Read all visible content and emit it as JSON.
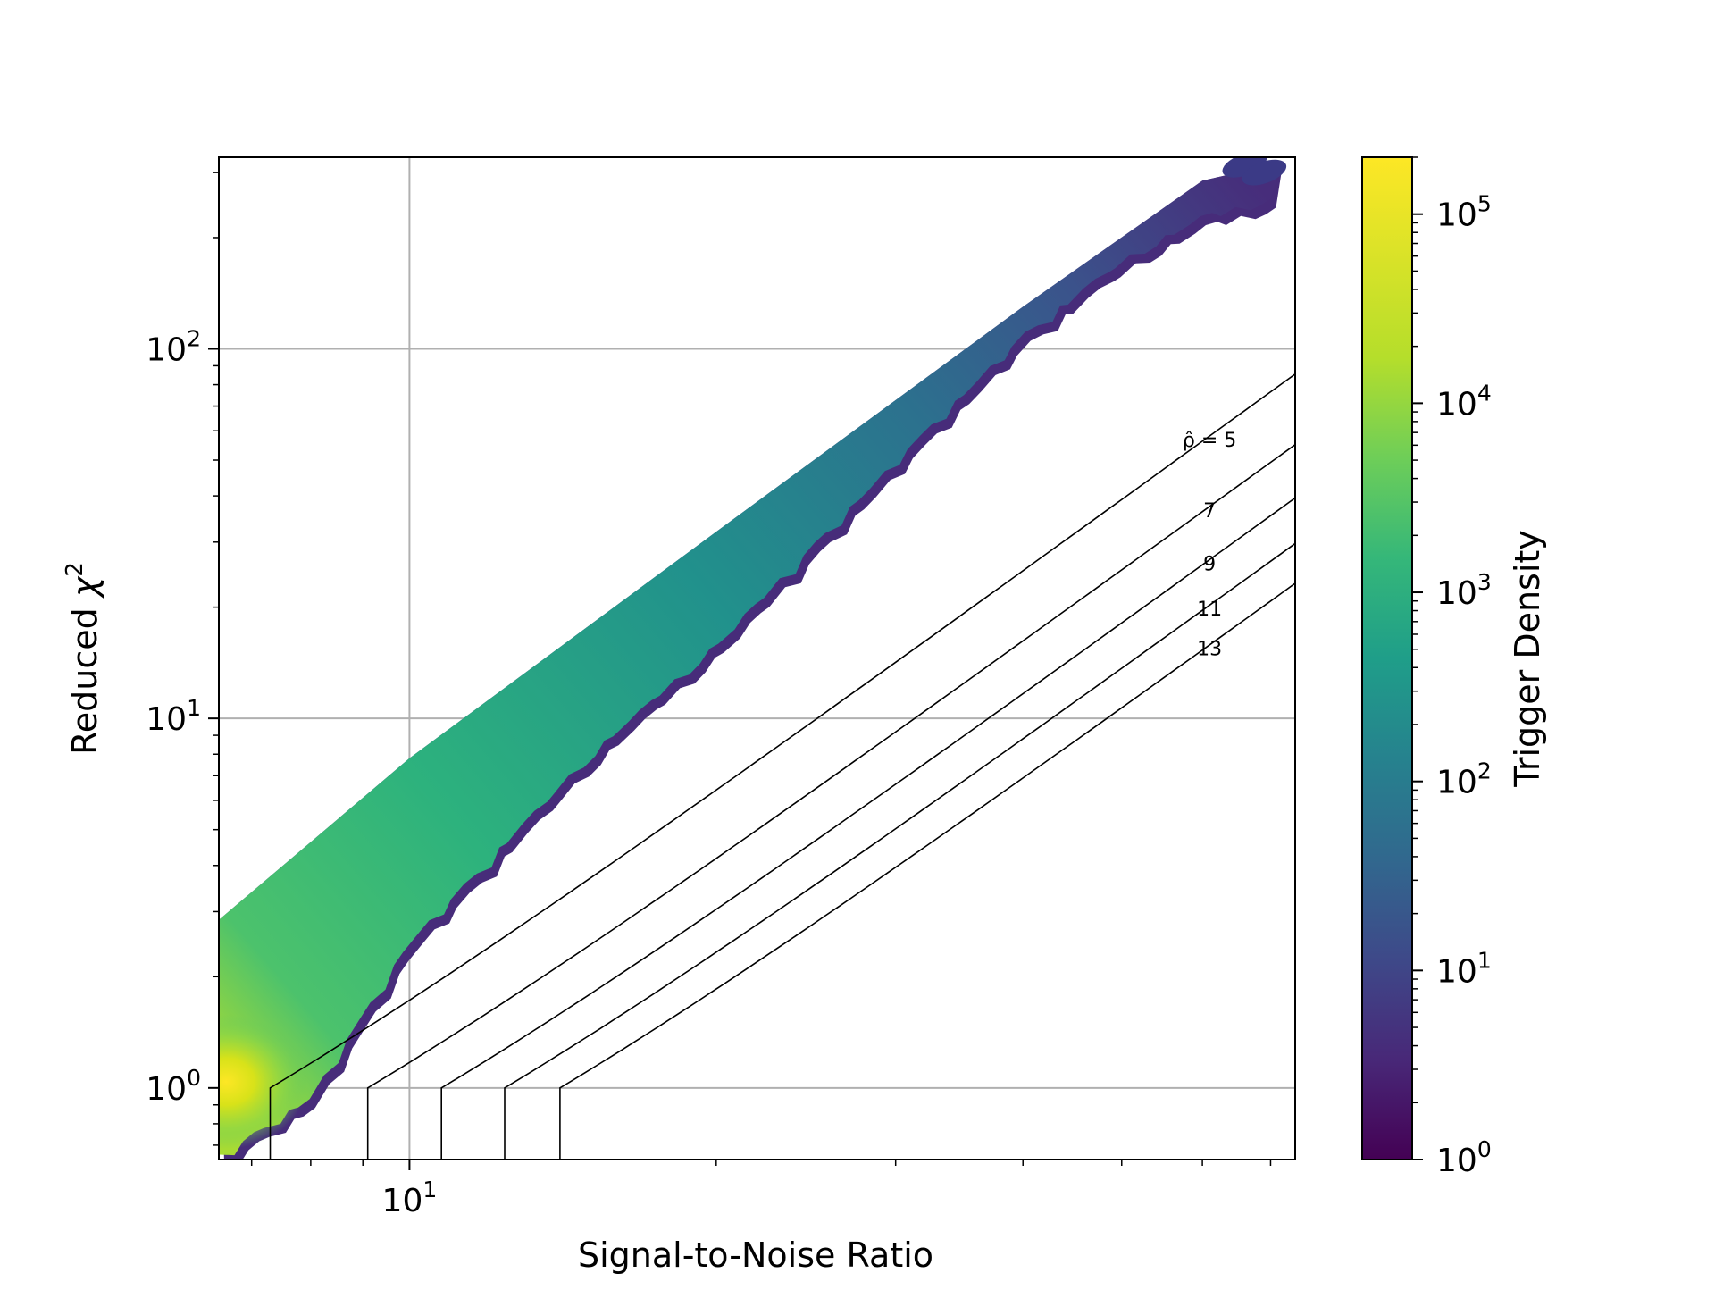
{
  "chart_data": {
    "type": "heatmap",
    "subtype": "hexbin trigger density with reweighted-SNR contours",
    "xlabel": "Signal-to-Noise Ratio",
    "ylabel_prefix": "Reduced ",
    "ylabel_symbol": "χ",
    "ylabel_superscript": "2",
    "x_scale": "log",
    "y_scale": "log",
    "xlim": [
      6.5,
      74
    ],
    "ylim": [
      0.64,
      330
    ],
    "x_ticks": [
      {
        "value": 10,
        "base": "10",
        "exp": "1"
      }
    ],
    "y_ticks": [
      {
        "value": 1,
        "base": "10",
        "exp": "0"
      },
      {
        "value": 10,
        "base": "10",
        "exp": "1"
      },
      {
        "value": 100,
        "base": "10",
        "exp": "2"
      }
    ],
    "grid": true,
    "colorbar": {
      "label": "Trigger Density",
      "scale": "log",
      "range": [
        1,
        200000
      ],
      "colormap": "viridis",
      "ticks": [
        {
          "value": 1,
          "base": "10",
          "exp": "0"
        },
        {
          "value": 10,
          "base": "10",
          "exp": "1"
        },
        {
          "value": 100,
          "base": "10",
          "exp": "2"
        },
        {
          "value": 1000,
          "base": "10",
          "exp": "3"
        },
        {
          "value": 10000,
          "base": "10",
          "exp": "4"
        },
        {
          "value": 100000,
          "base": "10",
          "exp": "5"
        }
      ]
    },
    "contours": [
      {
        "level": 5,
        "label": "ρ̂ = 5",
        "snr_at_chi1": 7.3
      },
      {
        "level": 7,
        "label": "7",
        "snr_at_chi1": 9.1
      },
      {
        "level": 9,
        "label": "9",
        "snr_at_chi1": 10.75
      },
      {
        "level": 11,
        "label": "11",
        "snr_at_chi1": 12.4
      },
      {
        "level": 13,
        "label": "13",
        "snr_at_chi1": 14.05
      }
    ],
    "density_band": {
      "upper_edge": [
        [
          6.5,
          2.85
        ],
        [
          10,
          7.8
        ],
        [
          20,
          32
        ],
        [
          40,
          130
        ],
        [
          60,
          285
        ],
        [
          72,
          320
        ]
      ],
      "lower_edge": [
        [
          6.5,
          0.66
        ],
        [
          8,
          0.95
        ],
        [
          10,
          2.5
        ],
        [
          15,
          8
        ],
        [
          20,
          16
        ],
        [
          30,
          50
        ],
        [
          40,
          110
        ],
        [
          50,
          175
        ],
        [
          60,
          230
        ],
        [
          70,
          255
        ]
      ],
      "peak_region": {
        "snr": [
          6.5,
          7.2
        ],
        "chi2": [
          0.9,
          1.2
        ],
        "density": 200000
      },
      "outliers": [
        [
          66,
          315
        ],
        [
          69,
          300
        ]
      ]
    }
  }
}
